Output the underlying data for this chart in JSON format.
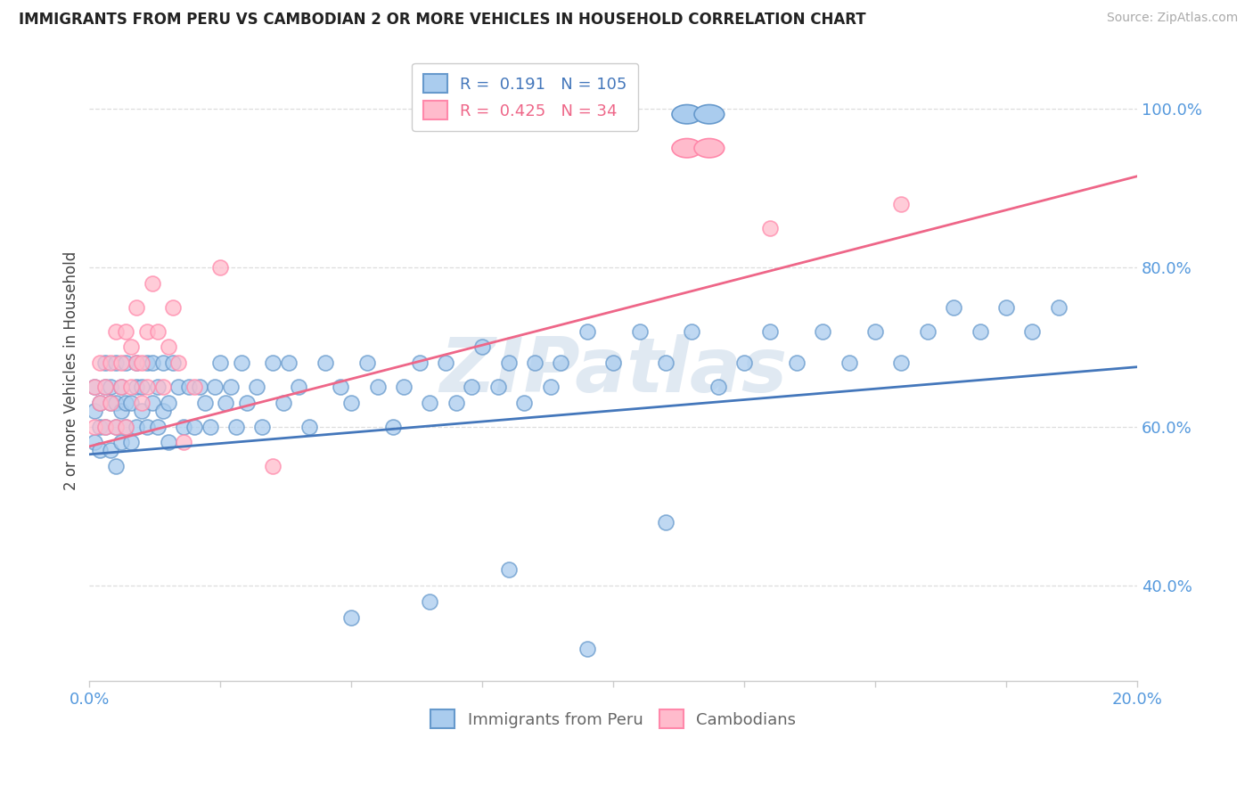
{
  "title": "IMMIGRANTS FROM PERU VS CAMBODIAN 2 OR MORE VEHICLES IN HOUSEHOLD CORRELATION CHART",
  "source": "Source: ZipAtlas.com",
  "ylabel": "2 or more Vehicles in Household",
  "ytick_labels": [
    "40.0%",
    "60.0%",
    "80.0%",
    "100.0%"
  ],
  "ytick_values": [
    0.4,
    0.6,
    0.8,
    1.0
  ],
  "xlim": [
    0.0,
    0.2
  ],
  "ylim": [
    0.28,
    1.06
  ],
  "r_peru": 0.191,
  "n_peru": 105,
  "r_cambodian": 0.425,
  "n_cambodian": 34,
  "color_peru_fill": "#AACCEE",
  "color_cambodian_fill": "#FFBBCC",
  "color_peru_edge": "#6699CC",
  "color_cambodian_edge": "#FF88AA",
  "color_peru_line": "#4477BB",
  "color_cambodian_line": "#EE6688",
  "legend_label_peru": "Immigrants from Peru",
  "legend_label_cambodian": "Cambodians",
  "watermark": "ZIPatlas",
  "watermark_color": "#C8D8E8",
  "peru_line_y0": 0.565,
  "peru_line_y1": 0.675,
  "cam_line_y0": 0.575,
  "cam_line_y1": 0.915,
  "peru_x": [
    0.001,
    0.001,
    0.001,
    0.002,
    0.002,
    0.002,
    0.003,
    0.003,
    0.003,
    0.004,
    0.004,
    0.004,
    0.005,
    0.005,
    0.005,
    0.005,
    0.006,
    0.006,
    0.006,
    0.007,
    0.007,
    0.007,
    0.008,
    0.008,
    0.009,
    0.009,
    0.009,
    0.01,
    0.01,
    0.011,
    0.011,
    0.012,
    0.012,
    0.013,
    0.013,
    0.014,
    0.014,
    0.015,
    0.015,
    0.016,
    0.017,
    0.018,
    0.019,
    0.02,
    0.021,
    0.022,
    0.023,
    0.024,
    0.025,
    0.026,
    0.027,
    0.028,
    0.029,
    0.03,
    0.032,
    0.033,
    0.035,
    0.037,
    0.038,
    0.04,
    0.042,
    0.045,
    0.048,
    0.05,
    0.053,
    0.055,
    0.058,
    0.06,
    0.063,
    0.065,
    0.068,
    0.07,
    0.073,
    0.075,
    0.078,
    0.08,
    0.083,
    0.085,
    0.088,
    0.09,
    0.095,
    0.1,
    0.105,
    0.11,
    0.115,
    0.12,
    0.125,
    0.13,
    0.135,
    0.14,
    0.145,
    0.15,
    0.155,
    0.16,
    0.165,
    0.17,
    0.175,
    0.18,
    0.185,
    0.05,
    0.065,
    0.08,
    0.095,
    0.11
  ],
  "peru_y": [
    0.62,
    0.65,
    0.58,
    0.6,
    0.63,
    0.57,
    0.65,
    0.6,
    0.68,
    0.63,
    0.57,
    0.65,
    0.6,
    0.55,
    0.63,
    0.68,
    0.62,
    0.58,
    0.65,
    0.6,
    0.63,
    0.68,
    0.58,
    0.63,
    0.6,
    0.65,
    0.68,
    0.62,
    0.65,
    0.6,
    0.68,
    0.63,
    0.68,
    0.6,
    0.65,
    0.62,
    0.68,
    0.58,
    0.63,
    0.68,
    0.65,
    0.6,
    0.65,
    0.6,
    0.65,
    0.63,
    0.6,
    0.65,
    0.68,
    0.63,
    0.65,
    0.6,
    0.68,
    0.63,
    0.65,
    0.6,
    0.68,
    0.63,
    0.68,
    0.65,
    0.6,
    0.68,
    0.65,
    0.63,
    0.68,
    0.65,
    0.6,
    0.65,
    0.68,
    0.63,
    0.68,
    0.63,
    0.65,
    0.7,
    0.65,
    0.68,
    0.63,
    0.68,
    0.65,
    0.68,
    0.72,
    0.68,
    0.72,
    0.68,
    0.72,
    0.65,
    0.68,
    0.72,
    0.68,
    0.72,
    0.68,
    0.72,
    0.68,
    0.72,
    0.75,
    0.72,
    0.75,
    0.72,
    0.75,
    0.36,
    0.38,
    0.42,
    0.32,
    0.48
  ],
  "cambodian_x": [
    0.001,
    0.001,
    0.002,
    0.002,
    0.003,
    0.003,
    0.004,
    0.004,
    0.005,
    0.005,
    0.006,
    0.006,
    0.007,
    0.007,
    0.008,
    0.008,
    0.009,
    0.009,
    0.01,
    0.01,
    0.011,
    0.011,
    0.012,
    0.013,
    0.014,
    0.015,
    0.016,
    0.017,
    0.018,
    0.02,
    0.025,
    0.035,
    0.13,
    0.155
  ],
  "cambodian_y": [
    0.65,
    0.6,
    0.63,
    0.68,
    0.6,
    0.65,
    0.63,
    0.68,
    0.6,
    0.72,
    0.65,
    0.68,
    0.72,
    0.6,
    0.65,
    0.7,
    0.68,
    0.75,
    0.63,
    0.68,
    0.72,
    0.65,
    0.78,
    0.72,
    0.65,
    0.7,
    0.75,
    0.68,
    0.58,
    0.65,
    0.8,
    0.55,
    0.85,
    0.88
  ]
}
